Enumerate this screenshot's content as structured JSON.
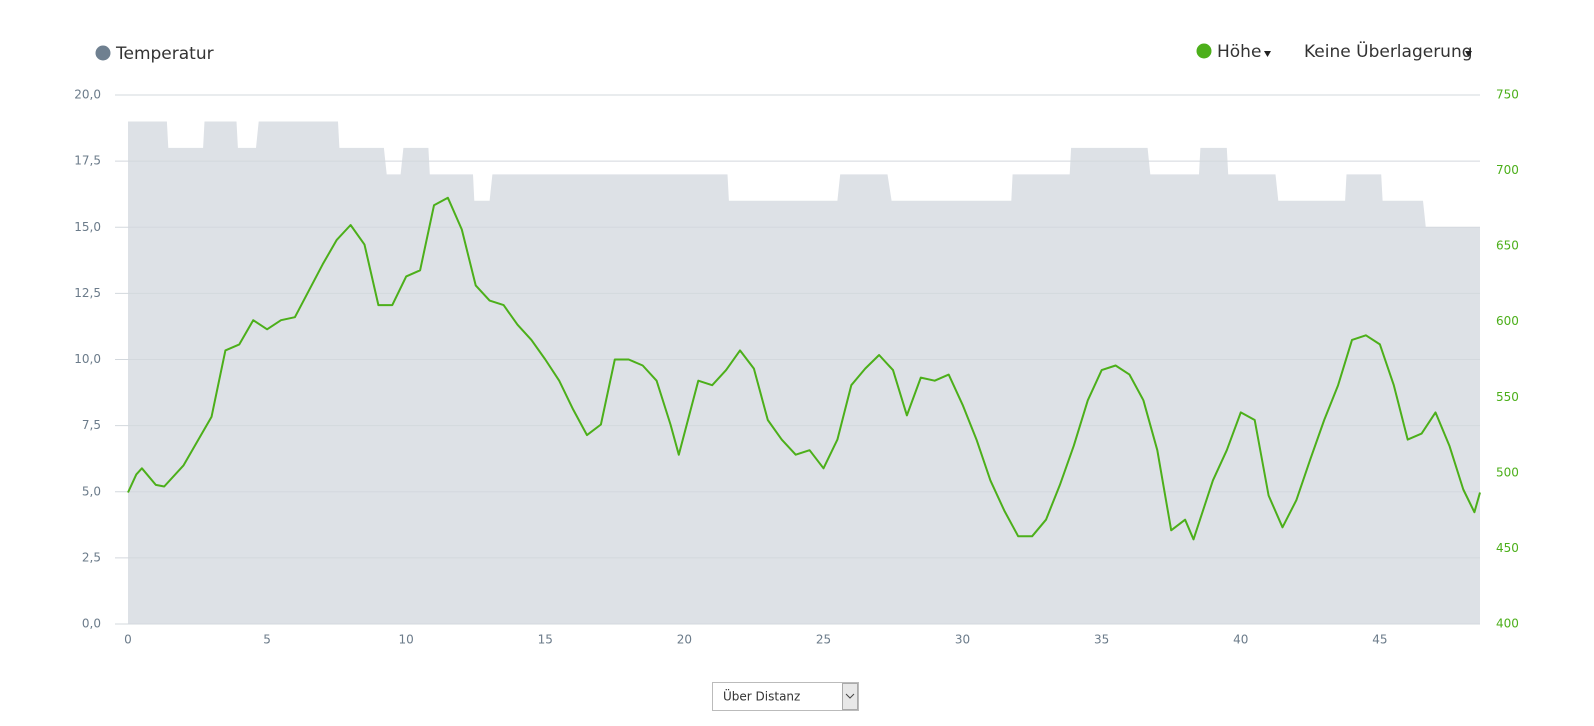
{
  "chart_data": {
    "type": "line",
    "xlim": [
      0,
      48.6
    ],
    "xticks": [
      0,
      5,
      10,
      15,
      20,
      25,
      30,
      35,
      40,
      45
    ],
    "ylim": [
      0,
      20
    ],
    "yticks": [
      {
        "value": 0,
        "label": "0,0"
      },
      {
        "value": 2.5,
        "label": "2,5"
      },
      {
        "value": 5,
        "label": "5,0"
      },
      {
        "value": 7.5,
        "label": "7,5"
      },
      {
        "value": 10,
        "label": "10,0"
      },
      {
        "value": 12.5,
        "label": "12,5"
      },
      {
        "value": 15,
        "label": "15,0"
      },
      {
        "value": 17.5,
        "label": "17,5"
      },
      {
        "value": 20,
        "label": "20,0"
      }
    ],
    "y2lim": [
      400,
      750
    ],
    "y2ticks": [
      400,
      450,
      500,
      550,
      600,
      650,
      700,
      750
    ],
    "grid": true,
    "series": [
      {
        "name": "Temperatur",
        "color": "#6f8090",
        "fill": "#dde1e6",
        "x": [
          0,
          1.4,
          1.45,
          2.7,
          2.75,
          3.9,
          3.95,
          4.6,
          4.7,
          7.55,
          7.6,
          9.2,
          9.3,
          9.8,
          9.9,
          10.8,
          10.85,
          12.4,
          12.45,
          13.0,
          13.1,
          21.55,
          21.6,
          25.5,
          25.6,
          27.3,
          27.45,
          31.75,
          31.8,
          33.85,
          33.9,
          36.65,
          36.75,
          38.5,
          38.55,
          39.5,
          39.55,
          41.25,
          41.35,
          43.75,
          43.8,
          45.05,
          45.1,
          46.55,
          46.65,
          48.6
        ],
        "values": [
          19,
          19,
          18,
          18,
          19,
          19,
          18,
          18,
          19,
          19,
          18,
          18,
          17,
          17,
          18,
          18,
          17,
          17,
          16,
          16,
          17,
          17,
          16,
          16,
          17,
          17,
          16,
          16,
          17,
          17,
          18,
          18,
          17,
          17,
          18,
          18,
          17,
          17,
          16,
          16,
          17,
          17,
          16,
          16,
          15,
          15
        ]
      },
      {
        "name": "Höhe",
        "color": "#4caf1a",
        "axis": "y2",
        "x": [
          0,
          0.3,
          0.5,
          1.0,
          1.3,
          2.0,
          3.0,
          3.5,
          4.0,
          4.5,
          5.0,
          5.5,
          6.0,
          7.0,
          7.5,
          8.0,
          8.5,
          9.0,
          9.5,
          10.0,
          10.5,
          11.0,
          11.5,
          12.0,
          12.5,
          13.0,
          13.5,
          14.0,
          14.5,
          15.0,
          15.5,
          16.0,
          16.5,
          17.0,
          17.5,
          18.0,
          18.5,
          19.0,
          19.5,
          19.8,
          20.5,
          21.0,
          21.5,
          22.0,
          22.5,
          23.0,
          23.5,
          24.0,
          24.5,
          25.0,
          25.5,
          26.0,
          26.5,
          27.0,
          27.5,
          28.0,
          28.5,
          29.0,
          29.5,
          30.0,
          30.5,
          31.0,
          31.5,
          32.0,
          32.5,
          33.0,
          33.5,
          34.0,
          34.5,
          35.0,
          35.5,
          36.0,
          36.5,
          37.0,
          37.5,
          38.0,
          38.3,
          39.0,
          39.5,
          40.0,
          40.5,
          41.0,
          41.5,
          42.0,
          42.5,
          43.0,
          43.5,
          44.0,
          44.5,
          45.0,
          45.5,
          46.0,
          46.5,
          47.0,
          47.5,
          48.0,
          48.4,
          48.6
        ],
        "values": [
          487,
          499,
          503,
          492,
          491,
          505,
          537,
          581,
          585,
          601,
          595,
          601,
          603,
          638,
          654,
          664,
          651,
          611,
          611,
          630,
          634,
          677,
          682,
          661,
          624,
          614,
          611,
          598,
          588,
          575,
          561,
          542,
          525,
          532,
          575,
          575,
          571,
          561,
          532,
          512,
          561,
          558,
          568,
          581,
          569,
          535,
          522,
          512,
          515,
          503,
          522,
          558,
          569,
          578,
          568,
          538,
          563,
          561,
          565,
          545,
          522,
          495,
          475,
          458,
          458,
          469,
          492,
          518,
          548,
          568,
          571,
          565,
          548,
          515,
          462,
          469,
          456,
          495,
          515,
          540,
          535,
          485,
          464,
          482,
          509,
          535,
          558,
          588,
          591,
          585,
          558,
          522,
          526,
          540,
          518,
          489,
          474,
          487
        ]
      }
    ]
  },
  "controls": {
    "overlay": "Keine Überlagerung",
    "x_mode": "Über Distanz"
  }
}
